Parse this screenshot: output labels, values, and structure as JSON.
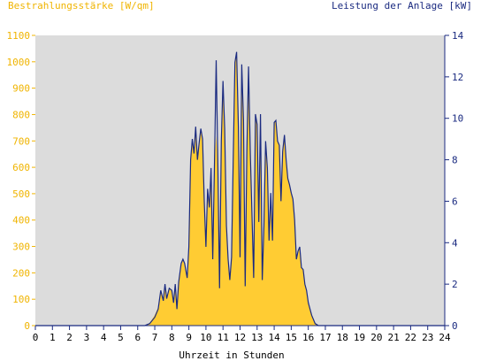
{
  "chart_data": {
    "type": "area",
    "left_axis_title": "Bestrahlungsstärke [W/qm]",
    "right_axis_title": "Leistung der Anlage [kW]",
    "xlabel": "Uhrzeit in Stunden",
    "xlim": [
      0,
      24
    ],
    "ylim_left": [
      0,
      1100
    ],
    "ylim_right": [
      0,
      14
    ],
    "x_ticks": [
      "0",
      "1",
      "2",
      "3",
      "4",
      "5",
      "6",
      "7",
      "8",
      "9",
      "10",
      "11",
      "12",
      "13",
      "14",
      "15",
      "16",
      "17",
      "18",
      "19",
      "20",
      "21",
      "22",
      "23",
      "24"
    ],
    "y_ticks_left": [
      "0",
      "100",
      "200",
      "300",
      "400",
      "500",
      "600",
      "700",
      "800",
      "900",
      "1000",
      "1100"
    ],
    "y_ticks_right": [
      "0",
      "2",
      "4",
      "6",
      "8",
      "10",
      "12",
      "14"
    ],
    "grid": false,
    "colors": {
      "irradiance_fill": "#ffcc33",
      "power_line": "#1a2a80",
      "plot_bg": "#dcdcdc",
      "left_axis_text": "#f0b400",
      "right_axis_text": "#1a2a80",
      "axis_text": "#000000"
    },
    "series": [
      {
        "axis": "left",
        "style": "area",
        "x": [
          0,
          6.4,
          6.7,
          7.0,
          7.2,
          7.35,
          7.5,
          7.6,
          7.7,
          7.85,
          8.0,
          8.1,
          8.2,
          8.3,
          8.4,
          8.55,
          8.65,
          8.75,
          8.9,
          9.0,
          9.1,
          9.2,
          9.3,
          9.4,
          9.5,
          9.6,
          9.7,
          9.8,
          9.9,
          10.0,
          10.1,
          10.2,
          10.3,
          10.4,
          10.5,
          10.6,
          10.7,
          10.8,
          10.9,
          11.0,
          11.1,
          11.2,
          11.3,
          11.4,
          11.5,
          11.6,
          11.7,
          11.8,
          11.9,
          12.0,
          12.1,
          12.2,
          12.3,
          12.4,
          12.5,
          12.6,
          12.7,
          12.8,
          12.9,
          13.0,
          13.1,
          13.2,
          13.3,
          13.4,
          13.5,
          13.6,
          13.7,
          13.8,
          13.9,
          14.0,
          14.1,
          14.2,
          14.3,
          14.4,
          14.5,
          14.6,
          14.7,
          14.8,
          14.9,
          15.0,
          15.1,
          15.2,
          15.3,
          15.4,
          15.5,
          15.6,
          15.7,
          15.8,
          15.9,
          16.0,
          16.2,
          16.4,
          16.6,
          16.8,
          16.9,
          17.0,
          17.2,
          17.4,
          17.6,
          17.8,
          18.0,
          18.2,
          18.4,
          18.6,
          18.8,
          19.0,
          24
        ],
        "values": [
          0,
          0,
          10,
          40,
          70,
          130,
          100,
          150,
          110,
          140,
          130,
          90,
          150,
          60,
          160,
          230,
          250,
          230,
          180,
          300,
          620,
          700,
          650,
          750,
          630,
          690,
          740,
          700,
          470,
          300,
          520,
          450,
          600,
          250,
          620,
          720,
          610,
          140,
          700,
          920,
          750,
          380,
          250,
          170,
          260,
          640,
          1000,
          1040,
          760,
          260,
          990,
          780,
          150,
          660,
          980,
          650,
          420,
          180,
          800,
          760,
          390,
          800,
          170,
          380,
          700,
          600,
          320,
          500,
          320,
          770,
          780,
          700,
          680,
          470,
          660,
          720,
          630,
          560,
          530,
          500,
          480,
          400,
          250,
          280,
          300,
          220,
          210,
          160,
          130,
          90,
          40,
          10,
          0,
          0,
          0,
          0,
          0,
          0,
          0,
          0,
          0,
          0,
          0,
          0,
          0,
          0,
          0
        ]
      },
      {
        "axis": "right",
        "style": "line",
        "x": [
          0,
          6.4,
          6.7,
          7.0,
          7.2,
          7.35,
          7.5,
          7.6,
          7.7,
          7.85,
          8.0,
          8.1,
          8.2,
          8.3,
          8.4,
          8.55,
          8.65,
          8.75,
          8.9,
          9.0,
          9.1,
          9.2,
          9.3,
          9.4,
          9.5,
          9.6,
          9.7,
          9.8,
          9.9,
          10.0,
          10.1,
          10.2,
          10.3,
          10.4,
          10.5,
          10.6,
          10.7,
          10.8,
          10.9,
          11.0,
          11.1,
          11.2,
          11.3,
          11.4,
          11.5,
          11.6,
          11.7,
          11.8,
          11.9,
          12.0,
          12.1,
          12.2,
          12.3,
          12.4,
          12.5,
          12.6,
          12.7,
          12.8,
          12.9,
          13.0,
          13.1,
          13.2,
          13.3,
          13.4,
          13.5,
          13.6,
          13.7,
          13.8,
          13.9,
          14.0,
          14.1,
          14.2,
          14.3,
          14.4,
          14.5,
          14.6,
          14.7,
          14.8,
          14.9,
          15.0,
          15.1,
          15.2,
          15.3,
          15.4,
          15.5,
          15.6,
          15.7,
          15.8,
          15.9,
          16.0,
          16.2,
          16.4,
          16.6,
          16.8,
          16.9,
          17.0,
          17.2,
          17.4,
          17.6,
          17.8,
          18.0,
          18.2,
          18.4,
          18.6,
          18.8,
          19.0,
          24
        ],
        "values": [
          0,
          0,
          0.1,
          0.4,
          0.8,
          1.7,
          1.2,
          2.0,
          1.3,
          1.8,
          1.7,
          1.1,
          2.0,
          0.8,
          2.1,
          3.0,
          3.2,
          3.0,
          2.3,
          3.8,
          8.0,
          9.0,
          8.3,
          9.6,
          8.0,
          8.8,
          9.5,
          9.0,
          6.0,
          3.8,
          6.6,
          5.7,
          7.6,
          3.2,
          7.9,
          12.8,
          7.8,
          1.8,
          8.9,
          11.8,
          9.5,
          4.8,
          3.2,
          2.2,
          3.3,
          8.1,
          12.7,
          13.2,
          9.6,
          3.3,
          12.6,
          9.9,
          1.9,
          8.4,
          12.5,
          8.3,
          5.3,
          2.3,
          10.2,
          9.7,
          5.0,
          10.2,
          2.2,
          4.8,
          8.9,
          7.6,
          4.1,
          6.4,
          4.1,
          9.8,
          9.9,
          8.9,
          8.7,
          6.0,
          8.4,
          9.2,
          8.0,
          7.1,
          6.8,
          6.4,
          6.1,
          5.1,
          3.2,
          3.6,
          3.8,
          2.8,
          2.7,
          2.0,
          1.7,
          1.1,
          0.5,
          0.1,
          0,
          0,
          0,
          0,
          0,
          0,
          0,
          0,
          0,
          0,
          0,
          0,
          0,
          0,
          0
        ]
      }
    ]
  }
}
